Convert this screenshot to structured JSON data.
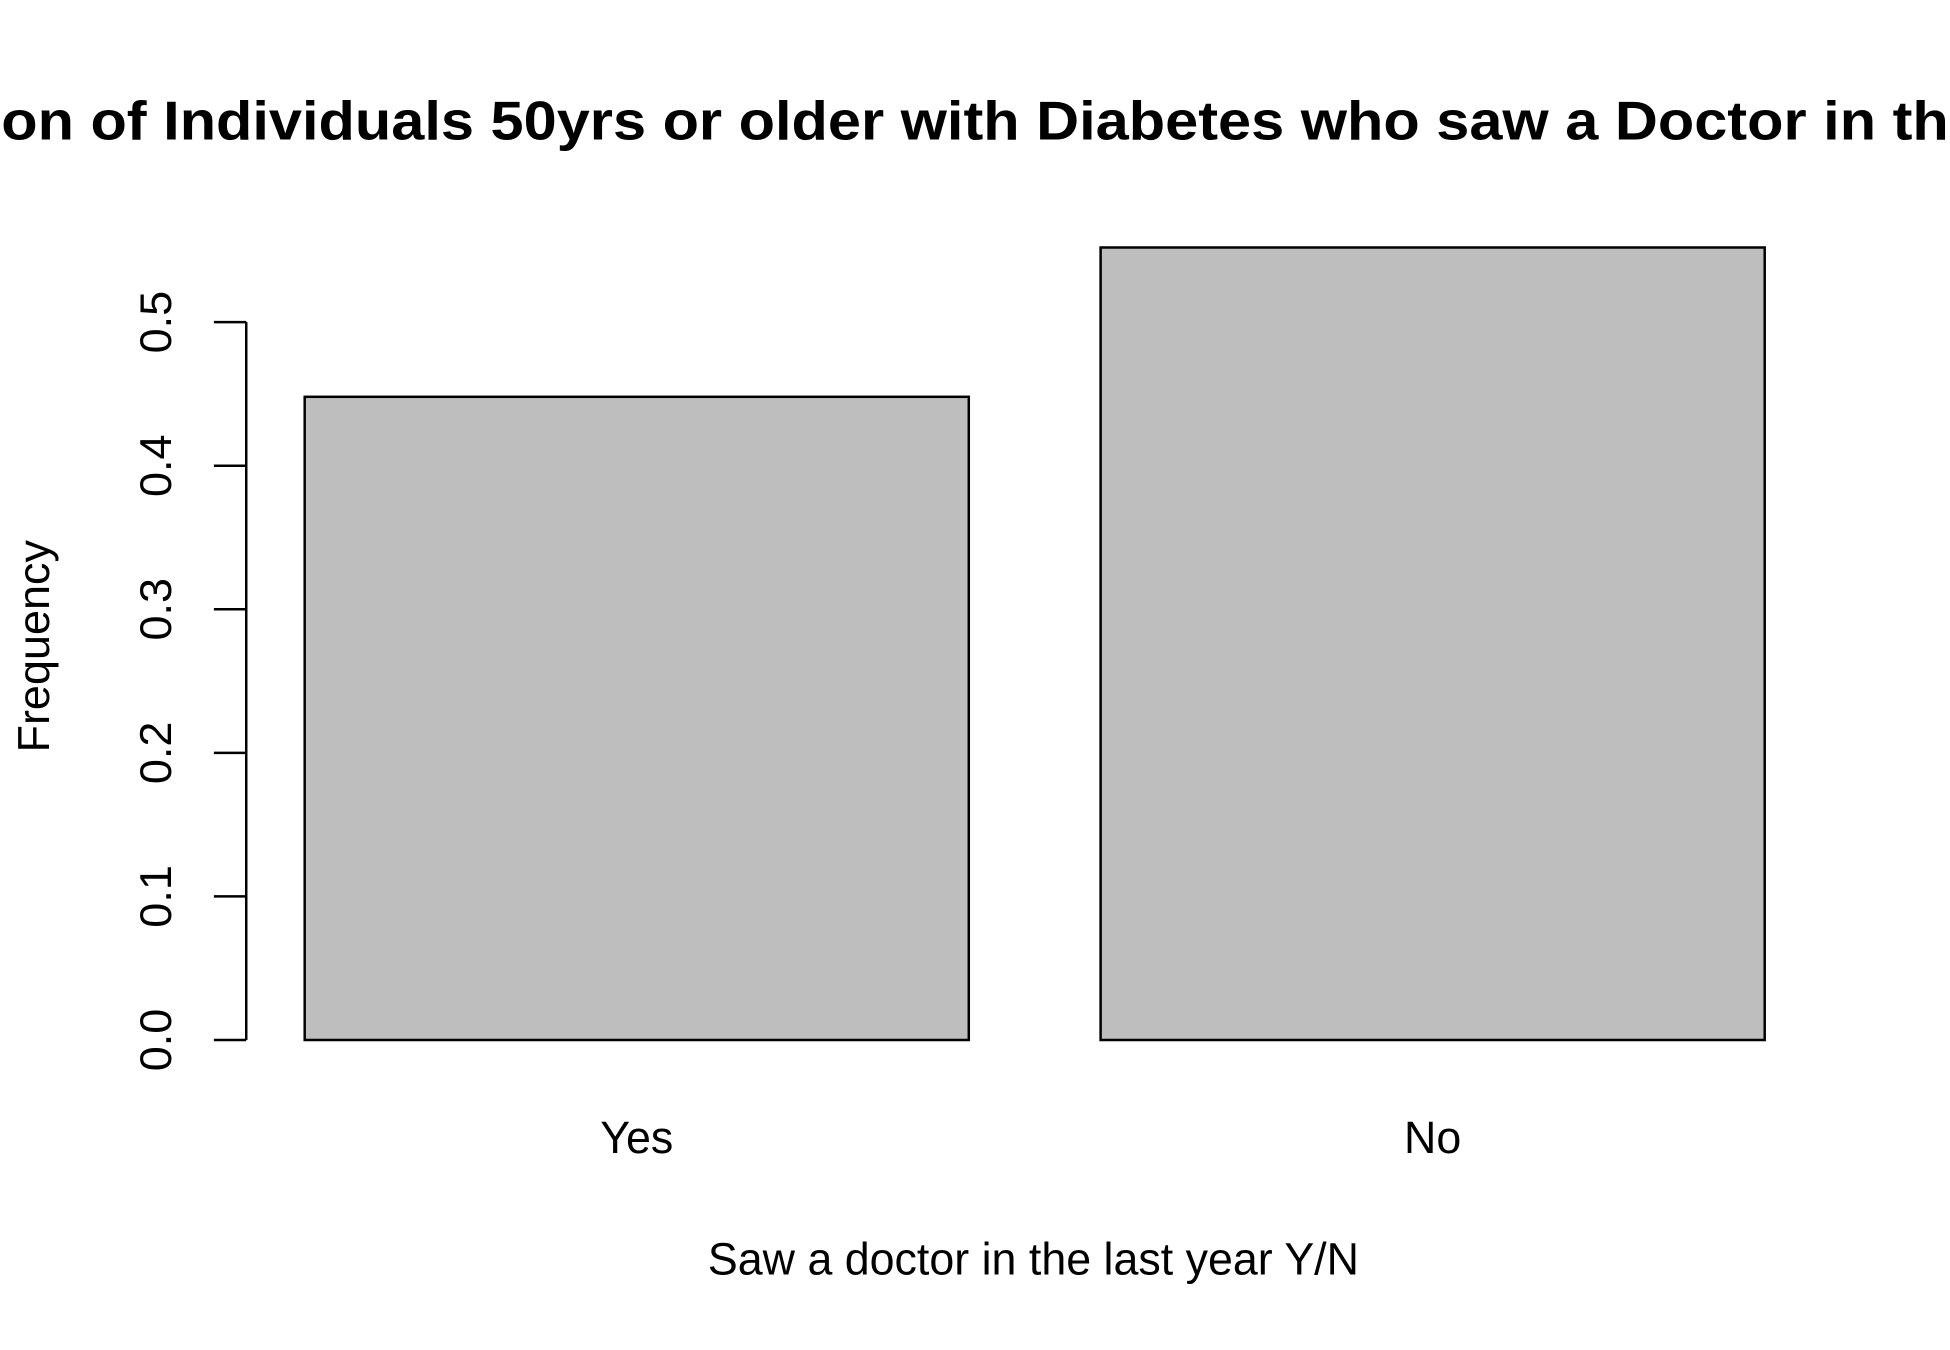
{
  "chart_data": {
    "type": "bar",
    "title": "on of Individuals 50yrs or older with Diabetes who saw a Doctor in th",
    "x_label": "Saw a doctor in the last year Y/N",
    "y_label": "Frequency",
    "categories": [
      "Yes",
      "No"
    ],
    "values": [
      0.448,
      0.552
    ],
    "color": "#bebebe",
    "ylim": [
      0,
      0.552
    ],
    "yticks": [
      0.0,
      0.1,
      0.2,
      0.3,
      0.4,
      0.5
    ],
    "grid": false
  }
}
